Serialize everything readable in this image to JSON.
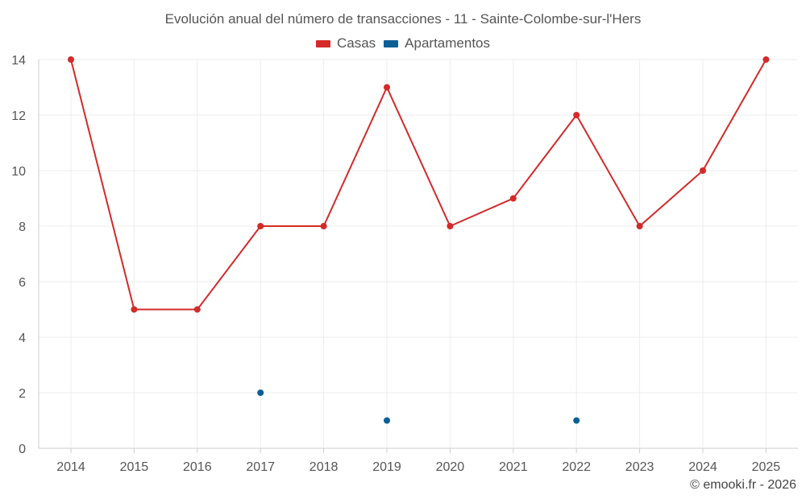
{
  "chart_data": {
    "type": "line",
    "title": "Evolución anual del número de transacciones - 11 - Sainte-Colombe-sur-l'Hers",
    "xlabel": "",
    "ylabel": "",
    "categories": [
      "2014",
      "2015",
      "2016",
      "2017",
      "2018",
      "2019",
      "2020",
      "2021",
      "2022",
      "2023",
      "2024",
      "2025"
    ],
    "ylim": [
      0,
      14
    ],
    "yticks": [
      0,
      2,
      4,
      6,
      8,
      10,
      12,
      14
    ],
    "grid": true,
    "legend_position": "top-center",
    "series": [
      {
        "name": "Casas",
        "color": "#d42a2a",
        "style": "line-markers",
        "values": [
          14,
          5,
          5,
          8,
          8,
          13,
          8,
          9,
          12,
          8,
          10,
          14
        ]
      },
      {
        "name": "Apartamentos",
        "color": "#0b5f95",
        "style": "markers",
        "values": [
          null,
          null,
          null,
          2,
          null,
          1,
          null,
          null,
          1,
          null,
          null,
          null
        ]
      }
    ]
  },
  "watermark": "© emooki.fr - 2026"
}
